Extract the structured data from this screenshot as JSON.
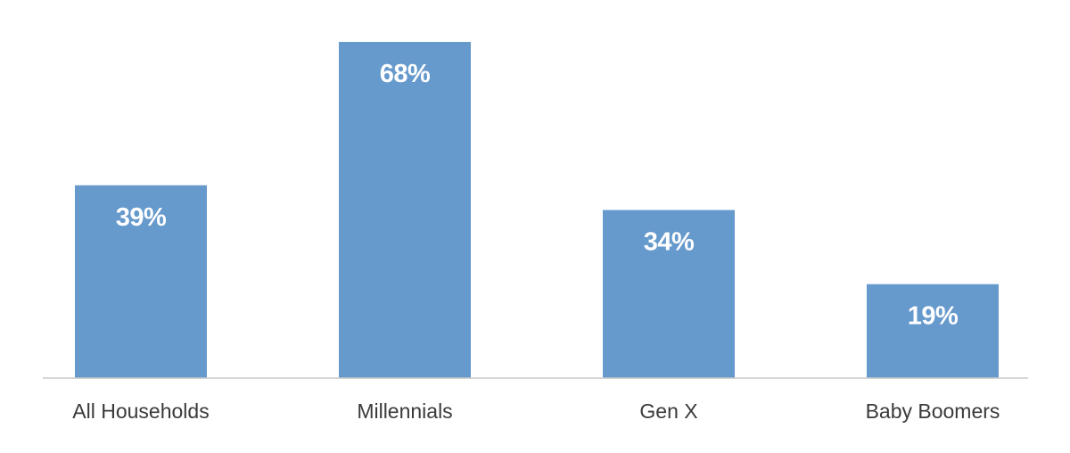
{
  "chart_data": {
    "type": "bar",
    "categories": [
      "All Households",
      "Millennials",
      "Gen X",
      "Baby Boomers"
    ],
    "values": [
      39,
      68,
      34,
      19
    ],
    "value_labels": [
      "39%",
      "68%",
      "34%",
      "19%"
    ],
    "title": "",
    "xlabel": "",
    "ylabel": "",
    "ylim": [
      0,
      68
    ],
    "grid": false,
    "legend": "none",
    "bar_color": "#6699CC",
    "axis_color": "#C8C8C8",
    "label_color": "#FFFFFF",
    "category_color": "#3A3A3A"
  }
}
